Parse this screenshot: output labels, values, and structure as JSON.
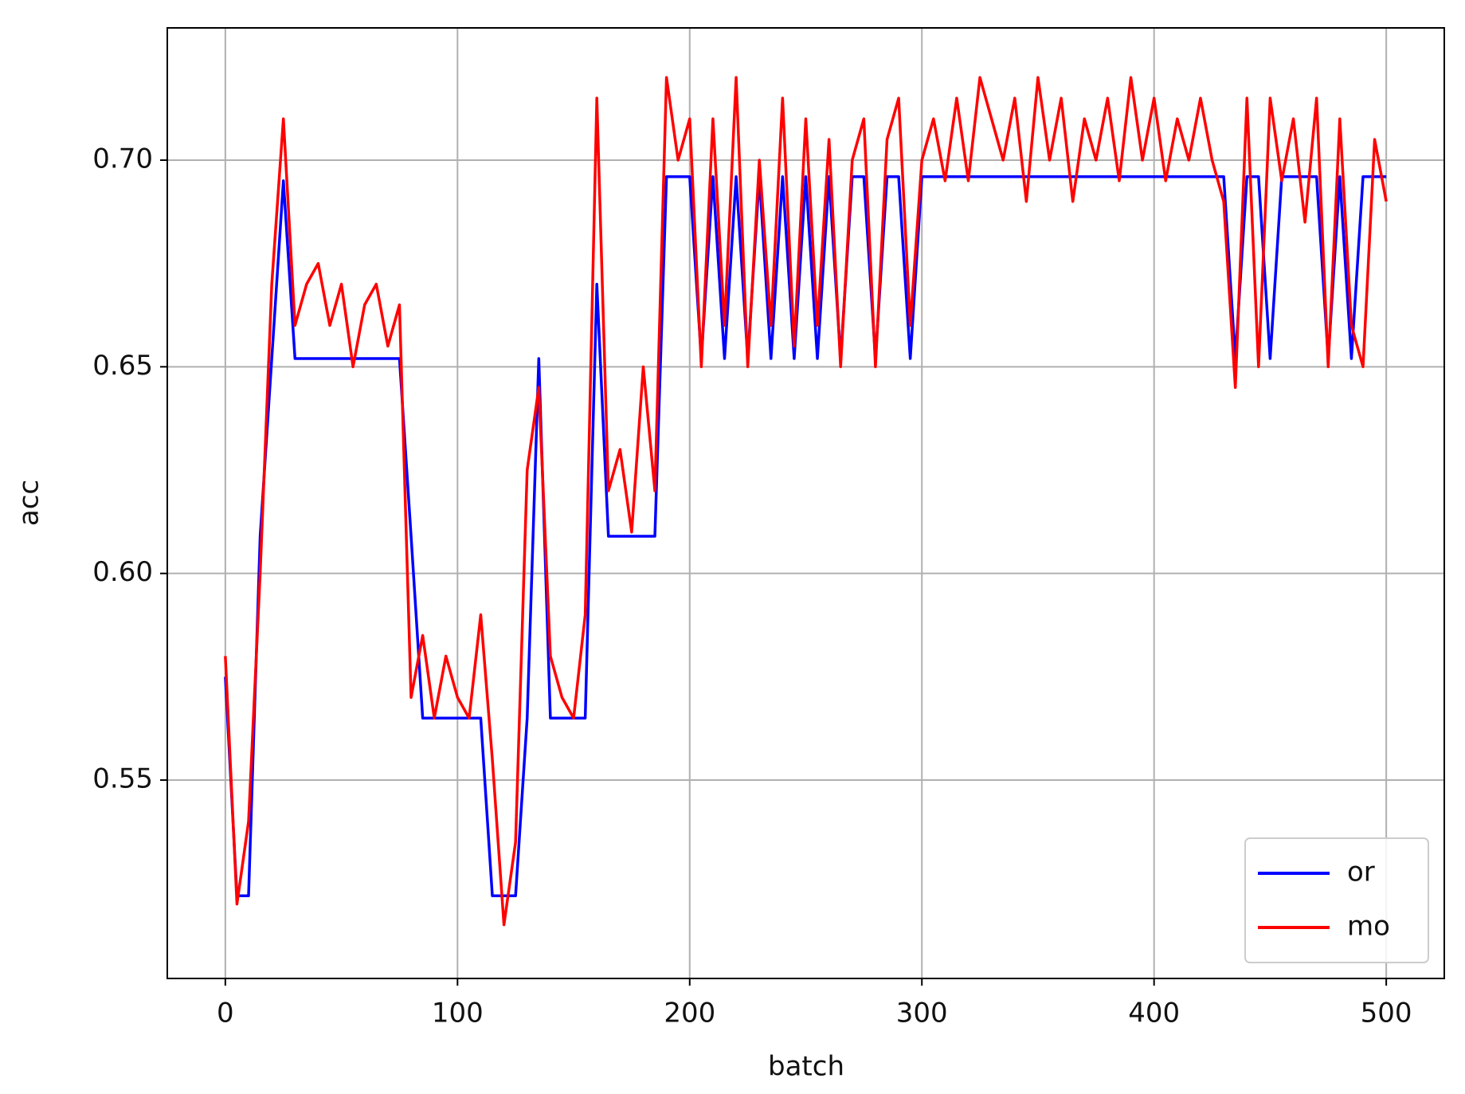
{
  "chart_data": {
    "type": "line",
    "xlabel": "batch",
    "ylabel": "acc",
    "x": [
      0,
      5,
      10,
      15,
      20,
      25,
      30,
      35,
      40,
      45,
      50,
      55,
      60,
      65,
      70,
      75,
      80,
      85,
      90,
      95,
      100,
      105,
      110,
      115,
      120,
      125,
      130,
      135,
      140,
      145,
      150,
      155,
      160,
      165,
      170,
      175,
      180,
      185,
      190,
      195,
      200,
      205,
      210,
      215,
      220,
      225,
      230,
      235,
      240,
      245,
      250,
      255,
      260,
      265,
      270,
      275,
      280,
      285,
      290,
      295,
      300,
      305,
      310,
      315,
      320,
      325,
      330,
      335,
      340,
      345,
      350,
      355,
      360,
      365,
      370,
      375,
      380,
      385,
      390,
      395,
      400,
      405,
      410,
      415,
      420,
      425,
      430,
      435,
      440,
      445,
      450,
      455,
      460,
      465,
      470,
      475,
      480,
      485,
      490,
      495,
      500
    ],
    "series": [
      {
        "name": "or",
        "color": "#0000ff",
        "values": [
          0.575,
          0.522,
          0.522,
          0.609,
          0.652,
          0.695,
          0.652,
          0.652,
          0.652,
          0.652,
          0.652,
          0.652,
          0.652,
          0.652,
          0.652,
          0.652,
          0.609,
          0.565,
          0.565,
          0.565,
          0.565,
          0.565,
          0.565,
          0.522,
          0.522,
          0.522,
          0.565,
          0.652,
          0.565,
          0.565,
          0.565,
          0.565,
          0.67,
          0.609,
          0.609,
          0.609,
          0.609,
          0.609,
          0.696,
          0.696,
          0.696,
          0.652,
          0.696,
          0.652,
          0.696,
          0.652,
          0.696,
          0.652,
          0.696,
          0.652,
          0.696,
          0.652,
          0.696,
          0.652,
          0.696,
          0.696,
          0.652,
          0.696,
          0.696,
          0.652,
          0.696,
          0.696,
          0.696,
          0.696,
          0.696,
          0.696,
          0.696,
          0.696,
          0.696,
          0.696,
          0.696,
          0.696,
          0.696,
          0.696,
          0.696,
          0.696,
          0.696,
          0.696,
          0.696,
          0.696,
          0.696,
          0.696,
          0.696,
          0.696,
          0.696,
          0.696,
          0.696,
          0.652,
          0.696,
          0.696,
          0.652,
          0.696,
          0.696,
          0.696,
          0.696,
          0.652,
          0.696,
          0.652,
          0.696,
          0.696,
          0.696
        ]
      },
      {
        "name": "mo",
        "color": "#ff0000",
        "values": [
          0.58,
          0.52,
          0.54,
          0.6,
          0.67,
          0.71,
          0.66,
          0.67,
          0.675,
          0.66,
          0.67,
          0.65,
          0.665,
          0.67,
          0.655,
          0.665,
          0.57,
          0.585,
          0.565,
          0.58,
          0.57,
          0.565,
          0.59,
          0.555,
          0.515,
          0.535,
          0.625,
          0.645,
          0.58,
          0.57,
          0.565,
          0.59,
          0.715,
          0.62,
          0.63,
          0.61,
          0.65,
          0.62,
          0.72,
          0.7,
          0.71,
          0.65,
          0.71,
          0.66,
          0.72,
          0.65,
          0.7,
          0.66,
          0.715,
          0.655,
          0.71,
          0.66,
          0.705,
          0.65,
          0.7,
          0.71,
          0.65,
          0.705,
          0.715,
          0.66,
          0.7,
          0.71,
          0.695,
          0.715,
          0.695,
          0.72,
          0.71,
          0.7,
          0.715,
          0.69,
          0.72,
          0.7,
          0.715,
          0.69,
          0.71,
          0.7,
          0.715,
          0.695,
          0.72,
          0.7,
          0.715,
          0.695,
          0.71,
          0.7,
          0.715,
          0.7,
          0.69,
          0.645,
          0.715,
          0.65,
          0.715,
          0.695,
          0.71,
          0.685,
          0.715,
          0.65,
          0.71,
          0.66,
          0.65,
          0.705,
          0.69
        ]
      }
    ],
    "xlim": [
      -25,
      525
    ],
    "ylim": [
      0.502,
      0.732
    ],
    "xticks": [
      0,
      100,
      200,
      300,
      400,
      500
    ],
    "yticks": [
      0.55,
      {
        "value": 0.6,
        "label": "0.60"
      },
      0.65,
      {
        "value": 0.7,
        "label": "0.70"
      }
    ],
    "grid": true,
    "legend_loc": "lower right"
  }
}
